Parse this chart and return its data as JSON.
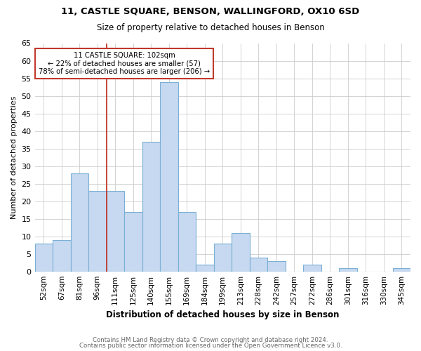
{
  "title1": "11, CASTLE SQUARE, BENSON, WALLINGFORD, OX10 6SD",
  "title2": "Size of property relative to detached houses in Benson",
  "xlabel": "Distribution of detached houses by size in Benson",
  "ylabel": "Number of detached properties",
  "categories": [
    "52sqm",
    "67sqm",
    "81sqm",
    "96sqm",
    "111sqm",
    "125sqm",
    "140sqm",
    "155sqm",
    "169sqm",
    "184sqm",
    "199sqm",
    "213sqm",
    "228sqm",
    "242sqm",
    "257sqm",
    "272sqm",
    "286sqm",
    "301sqm",
    "316sqm",
    "330sqm",
    "345sqm"
  ],
  "values": [
    8,
    9,
    28,
    23,
    23,
    17,
    37,
    54,
    17,
    2,
    8,
    11,
    4,
    3,
    0,
    2,
    0,
    1,
    0,
    0,
    1
  ],
  "bar_color": "#c6d9f0",
  "bar_edge_color": "#7bafd4",
  "vline_x": 3.5,
  "vline_color": "#c0392b",
  "annotation_line1": "11 CASTLE SQUARE: 102sqm",
  "annotation_line2": "← 22% of detached houses are smaller (57)",
  "annotation_line3": "78% of semi-detached houses are larger (206) →",
  "annotation_box_color": "#ffffff",
  "annotation_box_edge": "#c0392b",
  "ylim": [
    0,
    65
  ],
  "yticks": [
    0,
    5,
    10,
    15,
    20,
    25,
    30,
    35,
    40,
    45,
    50,
    55,
    60,
    65
  ],
  "footer1": "Contains HM Land Registry data © Crown copyright and database right 2024.",
  "footer2": "Contains public sector information licensed under the Open Government Licence v3.0.",
  "bg_color": "#ffffff",
  "grid_color": "#cccccc"
}
